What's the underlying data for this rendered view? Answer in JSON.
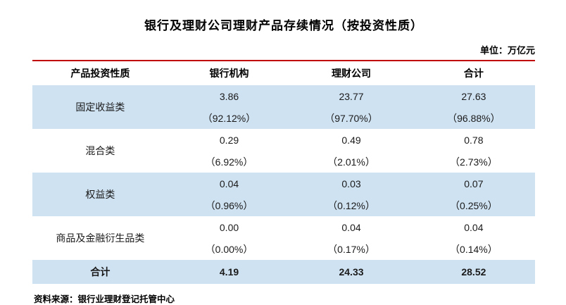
{
  "title": "银行及理财公司理财产品存续情况（按投资性质）",
  "unit_label": "单位：万亿元",
  "colors": {
    "stripe_blue": "#cfe2f2",
    "top_rule_red": "#c00000"
  },
  "table": {
    "headers": [
      "产品投资性质",
      "银行机构",
      "理财公司",
      "合计"
    ],
    "rows": [
      {
        "category": "固定收益类",
        "values": [
          "3.86",
          "23.77",
          "27.63"
        ],
        "percents": [
          "（92.12%）",
          "（97.70%）",
          "（96.88%）"
        ]
      },
      {
        "category": "混合类",
        "values": [
          "0.29",
          "0.49",
          "0.78"
        ],
        "percents": [
          "（6.92%）",
          "（2.01%）",
          "（2.73%）"
        ]
      },
      {
        "category": "权益类",
        "values": [
          "0.04",
          "0.03",
          "0.07"
        ],
        "percents": [
          "（0.96%）",
          "（0.12%）",
          "（0.25%）"
        ]
      },
      {
        "category": "商品及金融衍生品类",
        "values": [
          "0.00",
          "0.04",
          "0.04"
        ],
        "percents": [
          "（0.00%）",
          "（0.17%）",
          "（0.14%）"
        ]
      }
    ],
    "total_row": {
      "category": "合计",
      "values": [
        "4.19",
        "24.33",
        "28.52"
      ]
    }
  },
  "source": "资料来源：银行业理财登记托管中心"
}
